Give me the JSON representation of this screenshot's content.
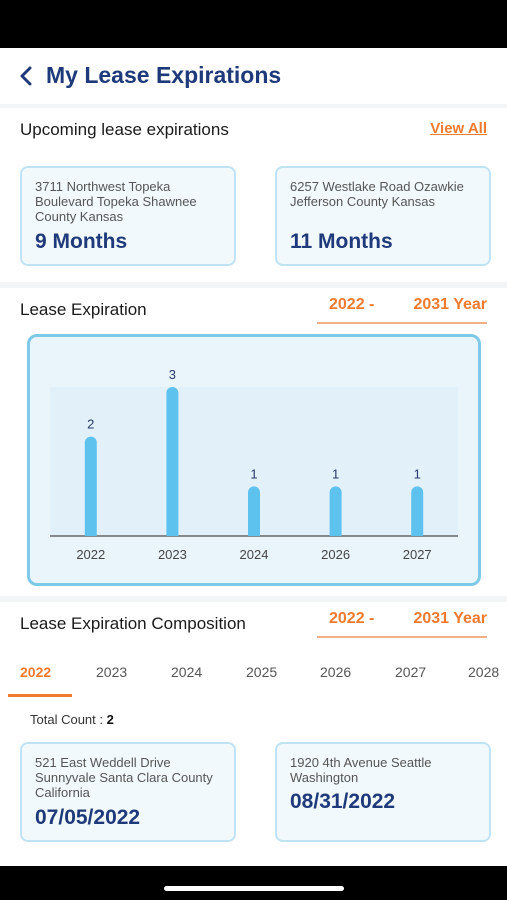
{
  "header": {
    "title": "My Lease Expirations",
    "back_icon": "chevron-left-icon"
  },
  "upcoming": {
    "title": "Upcoming lease expirations",
    "view_all": "View All",
    "items": [
      {
        "address": "3711 Northwest Topeka Boulevard Topeka Shawnee County Kansas",
        "value": "9 Months"
      },
      {
        "address": "6257 Westlake Road Ozawkie Jefferson County Kansas",
        "value": "11 Months"
      }
    ]
  },
  "expiration": {
    "title": "Lease Expiration",
    "range_start": "2022 -",
    "range_end": "2031 Year"
  },
  "chart_data": {
    "type": "bar",
    "categories": [
      "2022",
      "2023",
      "2024",
      "2026",
      "2027"
    ],
    "values": [
      2,
      3,
      1,
      1,
      1
    ],
    "title": "",
    "xlabel": "",
    "ylabel": "",
    "ylim": [
      0,
      3
    ],
    "grid": false,
    "bar_color": "#5ec2ef"
  },
  "composition": {
    "title": "Lease Expiration Composition",
    "range_start": "2022 -",
    "range_end": "2031 Year",
    "tabs": [
      "2022",
      "2023",
      "2024",
      "2025",
      "2026",
      "2027",
      "2028"
    ],
    "active_tab": "2022",
    "total_label": "Total Count :",
    "total_value": "2",
    "items": [
      {
        "address": "521 East Weddell Drive Sunnyvale Santa Clara County California",
        "date": "07/05/2022"
      },
      {
        "address": "1920 4th Avenue Seattle Washington",
        "date": "08/31/2022"
      }
    ]
  },
  "colors": {
    "accent": "#f07a2e",
    "title": "#1f3a7a",
    "bar": "#5ec2ef"
  }
}
